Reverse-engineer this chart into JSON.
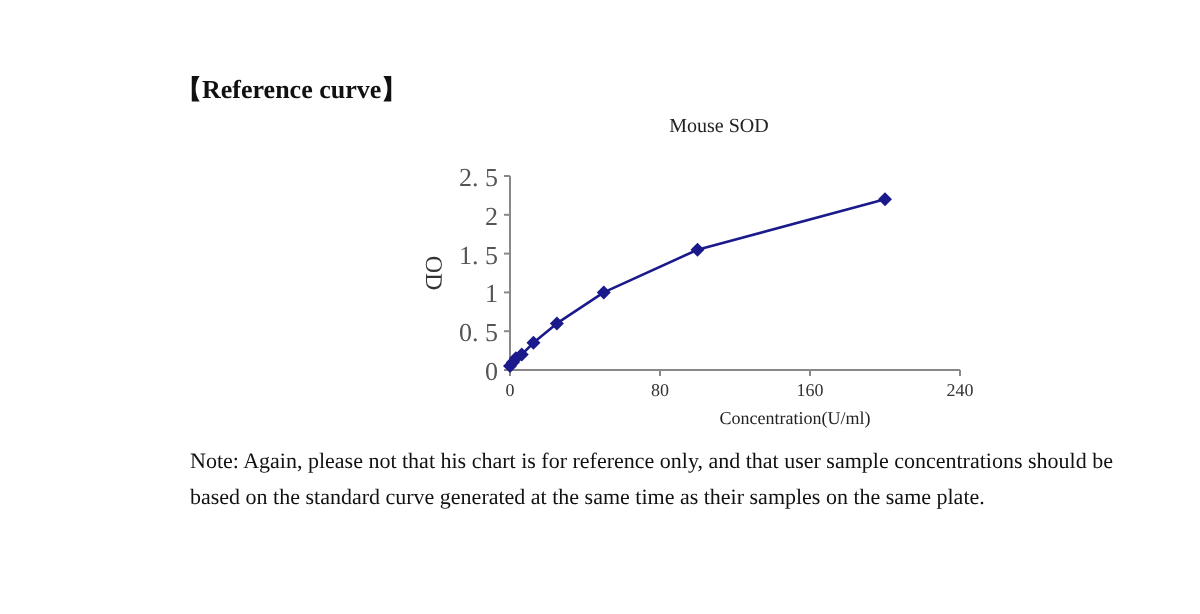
{
  "chart_data": {
    "type": "line",
    "title": "Mouse SOD",
    "xlabel": "Concentration(U/ml)",
    "ylabel": "OD",
    "x": [
      0,
      1.56,
      3.12,
      6.25,
      12.5,
      25,
      50,
      100,
      200
    ],
    "series": [
      {
        "color": "#1a1a8c",
        "values": [
          0.05,
          0.1,
          0.15,
          0.2,
          0.35,
          0.6,
          1.0,
          1.55,
          2.2
        ]
      }
    ],
    "marker": "diamond",
    "line_style": "solid",
    "grid": false,
    "xlim": [
      0,
      240
    ],
    "xticks": [
      0,
      80,
      160,
      240
    ],
    "ylim": [
      0,
      2.5
    ],
    "yticks": [
      0,
      {
        "value": 0.5,
        "label": "0. 5"
      },
      1,
      {
        "value": 1.5,
        "label": "1. 5"
      },
      2,
      {
        "value": 2.5,
        "label": "2. 5"
      }
    ],
    "annotations": [
      "【Reference curve】",
      "Note: Again, please not that his chart is for reference only, and that user sample concentrations should be based on the standard curve generated at the same time as their samples on the same plate."
    ]
  }
}
